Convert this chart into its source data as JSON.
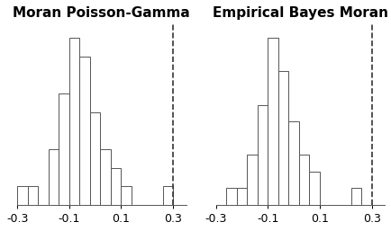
{
  "left_title": "Moran Poisson-Gamma",
  "right_title": "Empirical Bayes Moran",
  "xlim": [
    -0.3,
    0.35
  ],
  "xticks": [
    -0.3,
    -0.1,
    0.1,
    0.3
  ],
  "dashed_line_x": 0.3,
  "left_bins": [
    -0.3,
    -0.26,
    -0.22,
    -0.18,
    -0.14,
    -0.1,
    -0.06,
    -0.02,
    0.02,
    0.06,
    0.1,
    0.14,
    0.18,
    0.22,
    0.26,
    0.3
  ],
  "left_counts": [
    1,
    1,
    0,
    3,
    6,
    9,
    8,
    5,
    3,
    2,
    1,
    0,
    0,
    0,
    1,
    0
  ],
  "right_bins": [
    -0.3,
    -0.26,
    -0.22,
    -0.18,
    -0.14,
    -0.1,
    -0.06,
    -0.02,
    0.02,
    0.06,
    0.1,
    0.14,
    0.18,
    0.22,
    0.26,
    0.3
  ],
  "right_counts": [
    0,
    1,
    1,
    3,
    6,
    10,
    8,
    5,
    3,
    2,
    0,
    0,
    0,
    1,
    0,
    0
  ],
  "bar_facecolor": "white",
  "bar_edgecolor": "#555555",
  "dashed_color": "#333333",
  "title_fontsize": 11,
  "tick_fontsize": 9,
  "background_color": "white"
}
